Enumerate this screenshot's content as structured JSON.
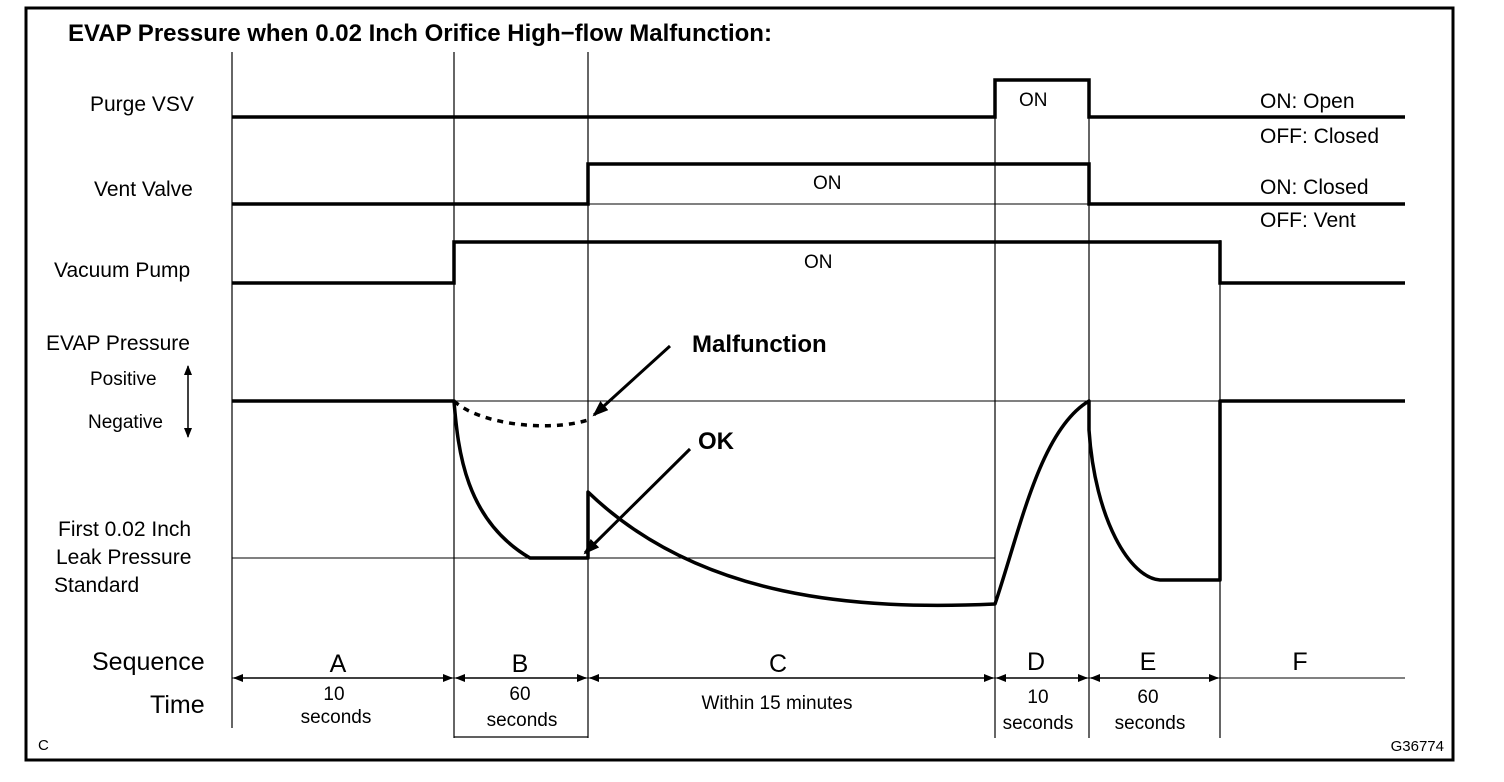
{
  "title": "EVAP Pressure when 0.02 Inch Orifice High−flow Malfunction:",
  "signals": {
    "purge_vsv": {
      "label": "Purge VSV",
      "on_label": "ON",
      "legend_on": "ON: Open",
      "legend_off": "OFF: Closed"
    },
    "vent_valve": {
      "label": "Vent Valve",
      "on_label": "ON",
      "legend_on": "ON: Closed",
      "legend_off": "OFF: Vent"
    },
    "vacuum_pump": {
      "label": "Vacuum Pump",
      "on_label": "ON"
    }
  },
  "evap_pressure": {
    "label": "EVAP Pressure",
    "positive": "Positive",
    "negative": "Negative",
    "standard_line1": "First 0.02 Inch",
    "standard_line2": "Leak Pressure",
    "standard_line3": "Standard",
    "malfunction": "Malfunction",
    "ok": "OK"
  },
  "sequence": {
    "row_label": "Sequence",
    "time_label": "Time",
    "steps": [
      {
        "id": "A",
        "time1": "10",
        "time2": "seconds"
      },
      {
        "id": "B",
        "time1": "60",
        "time2": "seconds"
      },
      {
        "id": "C",
        "time1": "Within 15 minutes",
        "time2": ""
      },
      {
        "id": "D",
        "time1": "10",
        "time2": "seconds"
      },
      {
        "id": "E",
        "time1": "60",
        "time2": "seconds"
      },
      {
        "id": "F",
        "time1": "",
        "time2": ""
      }
    ]
  },
  "corner_letter": "C",
  "figure_code": "G36774"
}
